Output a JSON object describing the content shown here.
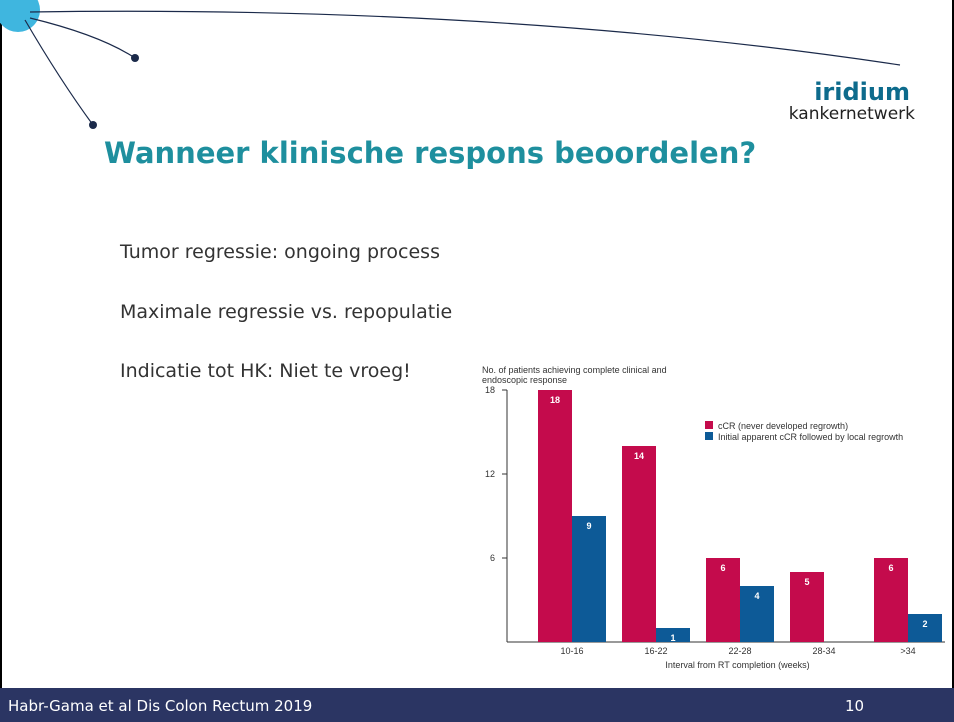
{
  "logo": {
    "name": "iridium",
    "subtitle": "kankernetwerk"
  },
  "title": "Wanneer klinische respons beoordelen?",
  "bullets": [
    "Tumor regressie: ongoing process",
    "Maximale regressie vs. repopulatie",
    "Indicatie tot HK: Niet te vroeg!"
  ],
  "chart_data": {
    "type": "bar",
    "y_label": [
      "No. of patients achieving complete clinical and",
      "endoscopic response"
    ],
    "x_label": "Interval from RT completion (weeks)",
    "categories": [
      "10-16",
      "16-22",
      "22-28",
      "28-34",
      ">34"
    ],
    "series": [
      {
        "name": "cCR (never developed regrowth)",
        "color": "#c40b4c",
        "values": [
          18,
          14,
          6,
          5,
          6
        ]
      },
      {
        "name": "Initial apparent cCR followed by local regrowth",
        "color": "#0d5a97",
        "values": [
          9,
          1,
          4,
          null,
          2
        ]
      }
    ],
    "ylim": [
      0,
      18
    ],
    "yticks": [
      6,
      12,
      18
    ],
    "legend": "upper right"
  },
  "footer": {
    "citation": "Habr-Gama et al Dis Colon Rectum 2019",
    "page": "10"
  }
}
